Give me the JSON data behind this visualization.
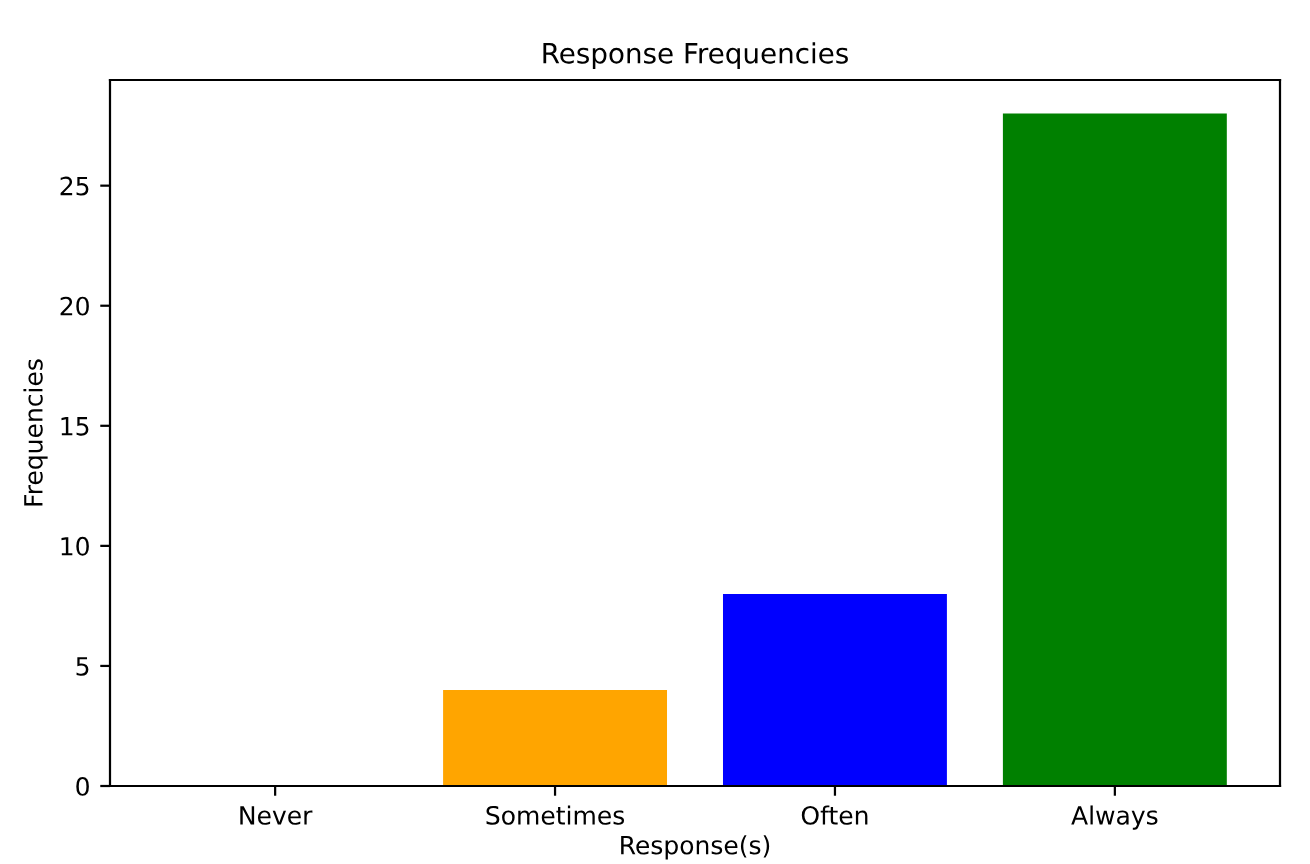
{
  "chart_data": {
    "type": "bar",
    "title": "Response Frequencies",
    "xlabel": "Response(s)",
    "ylabel": "Frequencies",
    "categories": [
      "Never",
      "Sometimes",
      "Often",
      "Always"
    ],
    "values": [
      0,
      4,
      8,
      28
    ],
    "colors": [
      "#ff0000",
      "#ffa500",
      "#0000ff",
      "#008000"
    ],
    "ylim": [
      0,
      29.4
    ],
    "yticks": [
      0,
      5,
      10,
      15,
      20,
      25
    ],
    "grid": false
  }
}
